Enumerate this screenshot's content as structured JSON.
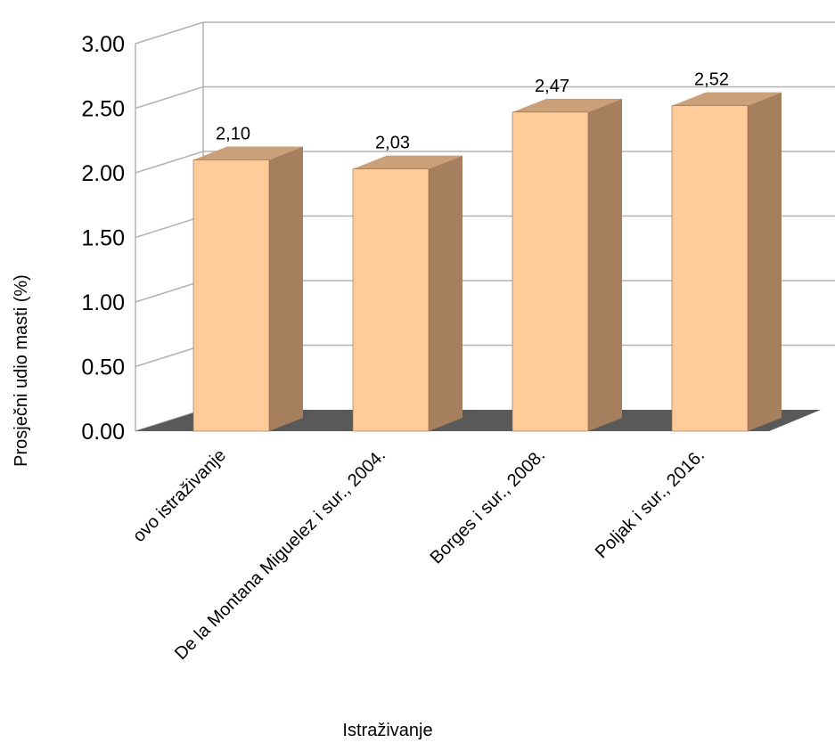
{
  "chart_data": {
    "type": "bar",
    "title": "",
    "xlabel": "Istraživanje",
    "ylabel": "Prosječni udio masti (%)",
    "categories": [
      "ovo istraživanje",
      "De la Montana Miguelez  i sur., 2004.",
      "Borges i sur., 2008.",
      "Poljak i sur., 2016."
    ],
    "values": [
      2.1,
      2.03,
      2.47,
      2.52
    ],
    "data_labels": [
      "2,10",
      "2,03",
      "2,47",
      "2,52"
    ],
    "yticks": [
      "0.00",
      "0.50",
      "1.00",
      "1.50",
      "2.00",
      "2.50",
      "3.00"
    ],
    "ylim": [
      0,
      3
    ],
    "grid": true,
    "style": "3d",
    "colors": {
      "bar_front": "#FFCC99",
      "bar_side": "#A57F5E",
      "bar_top": "#C9A077",
      "floor": "#595959",
      "grid": "#B3B3B3"
    }
  }
}
